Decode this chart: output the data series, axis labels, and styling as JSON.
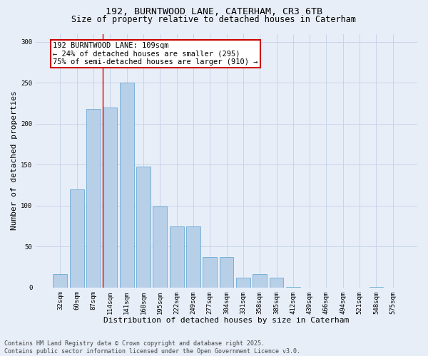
{
  "title_line1": "192, BURNTWOOD LANE, CATERHAM, CR3 6TB",
  "title_line2": "Size of property relative to detached houses in Caterham",
  "xlabel": "Distribution of detached houses by size in Caterham",
  "ylabel": "Number of detached properties",
  "categories": [
    "32sqm",
    "60sqm",
    "87sqm",
    "114sqm",
    "141sqm",
    "168sqm",
    "195sqm",
    "222sqm",
    "249sqm",
    "277sqm",
    "304sqm",
    "331sqm",
    "358sqm",
    "385sqm",
    "412sqm",
    "439sqm",
    "466sqm",
    "494sqm",
    "521sqm",
    "548sqm",
    "575sqm"
  ],
  "values": [
    16,
    120,
    218,
    220,
    250,
    148,
    99,
    75,
    75,
    37,
    37,
    12,
    16,
    12,
    1,
    0,
    0,
    0,
    0,
    1,
    0
  ],
  "bar_color": "#b8cfe8",
  "bar_edge_color": "#6aaad4",
  "grid_color": "#c8d4e8",
  "background_color": "#e8eef8",
  "annotation_box_text": "192 BURNTWOOD LANE: 109sqm\n← 24% of detached houses are smaller (295)\n75% of semi-detached houses are larger (910) →",
  "annotation_box_color": "#ffffff",
  "annotation_box_edge_color": "#cc0000",
  "vline_x": 2.57,
  "vline_color": "#cc0000",
  "ylim": [
    0,
    310
  ],
  "yticks": [
    0,
    50,
    100,
    150,
    200,
    250,
    300
  ],
  "footer_text": "Contains HM Land Registry data © Crown copyright and database right 2025.\nContains public sector information licensed under the Open Government Licence v3.0.",
  "title_fontsize": 9.5,
  "subtitle_fontsize": 8.5,
  "axis_label_fontsize": 8,
  "tick_fontsize": 6.5,
  "annotation_fontsize": 7.5,
  "footer_fontsize": 6
}
